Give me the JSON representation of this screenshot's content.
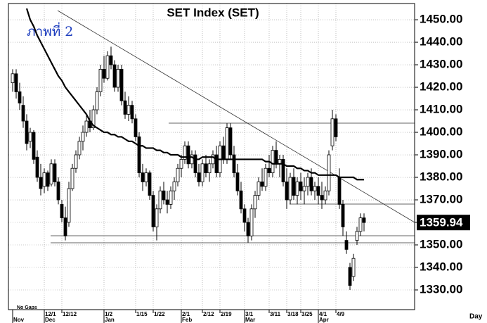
{
  "chart_data": {
    "type": "candlestick",
    "title": "SET  Index  (SET)",
    "annotation": "ภาพที่ 2",
    "x_note": "No Gaps",
    "x_label": "Day",
    "ylim": [
      1321.25,
      1457.2
    ],
    "yticks": [
      {
        "value": 1330,
        "label": "1330.00"
      },
      {
        "value": 1340,
        "label": "1340.00"
      },
      {
        "value": 1350,
        "label": "1350.00"
      },
      {
        "value": 1360,
        "label": "1360.00"
      },
      {
        "value": 1370,
        "label": "1370.00"
      },
      {
        "value": 1380,
        "label": "1380.00"
      },
      {
        "value": 1390,
        "label": "1390.00"
      },
      {
        "value": 1400,
        "label": "1400.00"
      },
      {
        "value": 1410,
        "label": "1410.00"
      },
      {
        "value": 1420,
        "label": "1420.00"
      },
      {
        "value": 1430,
        "label": "1430.00"
      },
      {
        "value": 1440,
        "label": "1440.00"
      },
      {
        "value": 1450,
        "label": "1450.00"
      }
    ],
    "grid": true,
    "categories": [
      null,
      null,
      null,
      null,
      null,
      null,
      null,
      null,
      null,
      "12/1",
      null,
      null,
      null,
      null,
      "12/12",
      null,
      null,
      null,
      null,
      null,
      null,
      null,
      null,
      null,
      null,
      null,
      "1/2",
      null,
      null,
      null,
      null,
      null,
      null,
      null,
      null,
      "1/15",
      null,
      null,
      null,
      null,
      "1/22",
      null,
      null,
      null,
      null,
      null,
      null,
      null,
      "2/1",
      null,
      null,
      null,
      null,
      null,
      "2/12",
      null,
      null,
      null,
      null,
      "2/19",
      null,
      null,
      null,
      null,
      null,
      null,
      "3/1",
      null,
      null,
      null,
      null,
      null,
      null,
      "3/11",
      null,
      null,
      null,
      null,
      "3/18",
      null,
      null,
      null,
      "3/25",
      null,
      null,
      null,
      null,
      "4/1",
      null,
      null,
      null,
      null,
      "4/9",
      null,
      null,
      null,
      null,
      null,
      null,
      null,
      null
    ],
    "months": [
      "Nov",
      null,
      null,
      null,
      null,
      null,
      null,
      null,
      null,
      "Dec",
      null,
      null,
      null,
      null,
      null,
      null,
      null,
      null,
      null,
      null,
      null,
      null,
      null,
      null,
      null,
      null,
      "Jan",
      null,
      null,
      null,
      null,
      null,
      null,
      null,
      null,
      null,
      null,
      null,
      null,
      null,
      null,
      null,
      null,
      null,
      null,
      null,
      null,
      null,
      "Feb",
      null,
      null,
      null,
      null,
      null,
      null,
      null,
      null,
      null,
      null,
      null,
      null,
      null,
      null,
      null,
      null,
      null,
      "Mar",
      null,
      null,
      null,
      null,
      null,
      null,
      null,
      null,
      null,
      null,
      null,
      null,
      null,
      null,
      null,
      null,
      null,
      null,
      null,
      null,
      "Apr",
      null,
      null,
      null,
      null,
      null,
      null,
      null,
      null,
      null,
      null,
      null,
      null,
      null
    ],
    "open": [
      1422,
      1426,
      1418,
      1412,
      1405,
      1396,
      1400,
      1389,
      1380,
      1376,
      1382,
      1377,
      1386,
      1378,
      1368,
      1362,
      1360,
      1375,
      1384,
      1390,
      1396,
      1400,
      1405,
      1402,
      1410,
      1418,
      1428,
      1424,
      1434,
      1430,
      1420,
      1428,
      1414,
      1408,
      1412,
      1406,
      1398,
      1382,
      1378,
      1382,
      1372,
      1358,
      1366,
      1374,
      1370,
      1368,
      1374,
      1378,
      1384,
      1388,
      1394,
      1386,
      1390,
      1382,
      1378,
      1386,
      1382,
      1386,
      1390,
      1382,
      1394,
      1388,
      1402,
      1390,
      1382,
      1374,
      1366,
      1360,
      1354,
      1366,
      1372,
      1378,
      1376,
      1384,
      1382,
      1392,
      1386,
      1388,
      1378,
      1370,
      1380,
      1372,
      1378,
      1374,
      1376,
      1380,
      1374,
      1376,
      1372,
      1370,
      1374,
      1394,
      1406,
      1380,
      1368,
      1352,
      1340,
      1336,
      1352,
      1356,
      1362
    ],
    "high": [
      1428,
      1428,
      1422,
      1416,
      1408,
      1402,
      1401,
      1392,
      1386,
      1384,
      1383,
      1388,
      1388,
      1380,
      1370,
      1367,
      1378,
      1386,
      1392,
      1398,
      1403,
      1408,
      1410,
      1412,
      1420,
      1430,
      1434,
      1436,
      1438,
      1432,
      1430,
      1430,
      1418,
      1416,
      1414,
      1408,
      1400,
      1386,
      1384,
      1383,
      1374,
      1368,
      1376,
      1378,
      1374,
      1376,
      1380,
      1386,
      1390,
      1396,
      1396,
      1392,
      1392,
      1386,
      1388,
      1390,
      1388,
      1392,
      1394,
      1396,
      1398,
      1404,
      1404,
      1394,
      1386,
      1378,
      1368,
      1362,
      1368,
      1374,
      1380,
      1384,
      1386,
      1390,
      1394,
      1396,
      1390,
      1390,
      1384,
      1382,
      1384,
      1380,
      1382,
      1380,
      1382,
      1384,
      1378,
      1380,
      1378,
      1376,
      1392,
      1410,
      1408,
      1384,
      1370,
      1356,
      1342,
      1346,
      1358,
      1364,
      1364
    ],
    "low": [
      1418,
      1415,
      1410,
      1402,
      1392,
      1393,
      1386,
      1378,
      1372,
      1373,
      1374,
      1376,
      1376,
      1368,
      1360,
      1352,
      1358,
      1374,
      1382,
      1388,
      1392,
      1398,
      1400,
      1401,
      1408,
      1416,
      1422,
      1423,
      1428,
      1418,
      1418,
      1412,
      1406,
      1405,
      1404,
      1396,
      1380,
      1374,
      1376,
      1370,
      1356,
      1352,
      1364,
      1368,
      1364,
      1366,
      1370,
      1376,
      1380,
      1386,
      1384,
      1384,
      1380,
      1376,
      1376,
      1380,
      1378,
      1384,
      1380,
      1380,
      1386,
      1386,
      1388,
      1380,
      1372,
      1364,
      1356,
      1351,
      1352,
      1362,
      1370,
      1374,
      1374,
      1380,
      1380,
      1384,
      1380,
      1376,
      1366,
      1368,
      1370,
      1368,
      1370,
      1368,
      1372,
      1372,
      1370,
      1368,
      1366,
      1368,
      1372,
      1392,
      1396,
      1366,
      1354,
      1346,
      1330,
      1334,
      1350,
      1354,
      1356
    ],
    "close": [
      1426,
      1418,
      1413,
      1405,
      1395,
      1400,
      1388,
      1380,
      1375,
      1382,
      1376,
      1386,
      1378,
      1370,
      1362,
      1354,
      1375,
      1384,
      1390,
      1396,
      1400,
      1405,
      1402,
      1410,
      1418,
      1428,
      1424,
      1434,
      1430,
      1420,
      1428,
      1414,
      1408,
      1412,
      1406,
      1398,
      1382,
      1378,
      1382,
      1372,
      1358,
      1366,
      1374,
      1370,
      1368,
      1374,
      1378,
      1384,
      1388,
      1394,
      1386,
      1390,
      1382,
      1378,
      1386,
      1382,
      1386,
      1390,
      1382,
      1394,
      1388,
      1402,
      1390,
      1382,
      1374,
      1366,
      1360,
      1354,
      1366,
      1372,
      1378,
      1376,
      1384,
      1382,
      1392,
      1386,
      1388,
      1378,
      1370,
      1380,
      1372,
      1378,
      1374,
      1376,
      1380,
      1374,
      1376,
      1372,
      1370,
      1374,
      1390,
      1406,
      1398,
      1368,
      1358,
      1348,
      1332,
      1344,
      1356,
      1362,
      1359.94
    ],
    "moving_average": [
      null,
      null,
      null,
      null,
      1455,
      1450,
      1447,
      1443,
      1440,
      1437,
      1434,
      1431,
      1428,
      1425,
      1423,
      1420,
      1418,
      1416,
      1414,
      1412,
      1410,
      1408,
      1405,
      1403,
      1402,
      1401,
      1400,
      1400,
      1399,
      1399,
      1398,
      1398,
      1397,
      1396,
      1396,
      1395,
      1394,
      1394,
      1393,
      1393,
      1393,
      1392,
      1392,
      1391,
      1391,
      1390,
      1390,
      1390,
      1389,
      1389,
      1389,
      1389,
      1388,
      1388,
      1389,
      1389,
      1389,
      1389,
      1388,
      1388,
      1388,
      1388,
      1388,
      1388,
      1388,
      1388,
      1388,
      1388,
      1388,
      1388,
      1388,
      1388,
      1387,
      1387,
      1386,
      1386,
      1386,
      1386,
      1385,
      1385,
      1385,
      1384,
      1384,
      1383,
      1383,
      1382,
      1382,
      1381,
      1381,
      1381,
      1381,
      1381,
      1381,
      1380,
      1380,
      1380,
      1380,
      1380,
      1379,
      1379,
      1379
    ]
  }
}
